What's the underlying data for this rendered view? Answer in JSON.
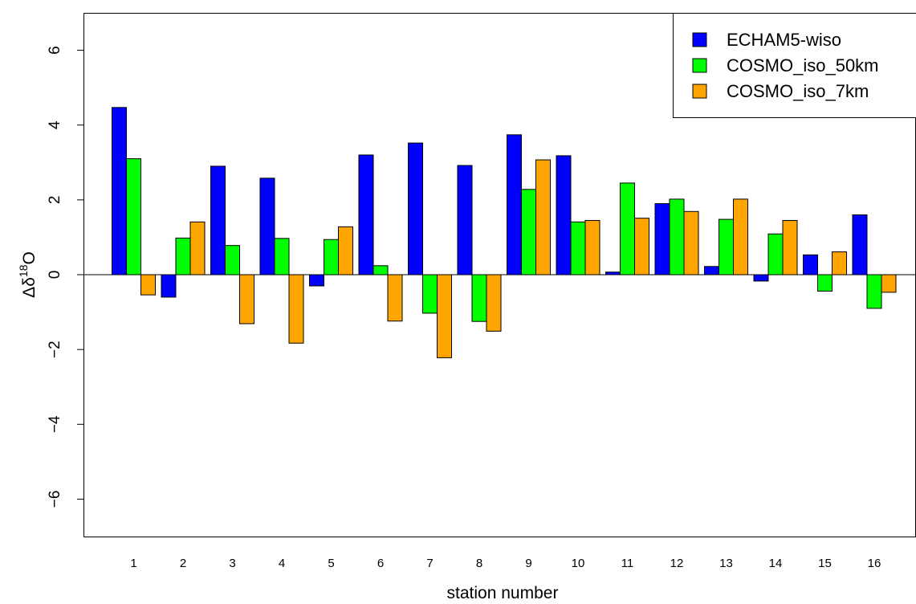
{
  "chart_data": {
    "type": "bar",
    "xlabel": "station number",
    "ylabel": {
      "base": "Δδ",
      "sup": "18",
      "suffix": "O"
    },
    "ylim": [
      -7,
      7
    ],
    "yticks": [
      -6,
      -4,
      -2,
      0,
      2,
      4,
      6
    ],
    "categories": [
      "1",
      "2",
      "3",
      "4",
      "5",
      "6",
      "7",
      "8",
      "9",
      "10",
      "11",
      "12",
      "13",
      "14",
      "15",
      "16"
    ],
    "series": [
      {
        "name": "ECHAM5-wiso",
        "color": "#0000ff",
        "values": [
          4.47,
          -0.6,
          2.9,
          2.58,
          -0.3,
          3.2,
          3.52,
          2.92,
          3.74,
          3.18,
          0.07,
          1.9,
          0.22,
          -0.17,
          0.53,
          1.6
        ]
      },
      {
        "name": "COSMO_iso_50km",
        "color": "#00ff00",
        "values": [
          3.1,
          0.98,
          0.78,
          0.97,
          0.94,
          0.24,
          -1.03,
          -1.25,
          2.28,
          1.41,
          2.45,
          2.02,
          1.48,
          1.09,
          -0.44,
          -0.9
        ]
      },
      {
        "name": "COSMO_iso_7km",
        "color": "#ffa500",
        "values": [
          -0.54,
          1.41,
          -1.31,
          -1.83,
          1.28,
          -1.24,
          -2.22,
          -1.51,
          3.07,
          1.45,
          1.51,
          1.69,
          2.02,
          1.45,
          0.61,
          -0.47
        ]
      }
    ],
    "legend_position": "top-right",
    "zero_line": true,
    "grid": false
  }
}
